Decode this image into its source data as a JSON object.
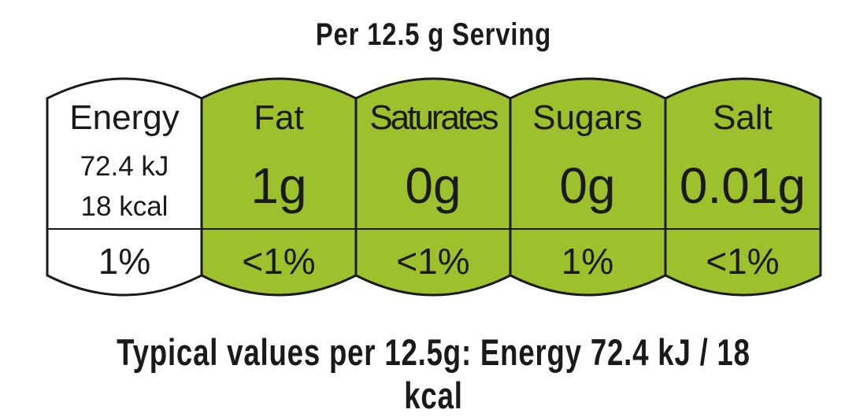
{
  "title": "Per 12.5 g Serving",
  "colors": {
    "green": "#9cc12d",
    "white": "#ffffff",
    "outline": "#1a1a1a"
  },
  "columns": [
    {
      "name": "Energy",
      "lines": [
        "72.4 kJ",
        "18 kcal"
      ],
      "percent": "1%",
      "color": "white"
    },
    {
      "name": "Fat",
      "amount": "1g",
      "percent": "<1%",
      "color": "green"
    },
    {
      "name": "Saturates",
      "amount": "0g",
      "percent": "<1%",
      "color": "green"
    },
    {
      "name": "Sugars",
      "amount": "0g",
      "percent": "1%",
      "color": "green"
    },
    {
      "name": "Salt",
      "amount": "0.01g",
      "percent": "<1%",
      "color": "green"
    }
  ],
  "footer": "Typical values per 12.5g: Energy 72.4 kJ / 18 kcal"
}
